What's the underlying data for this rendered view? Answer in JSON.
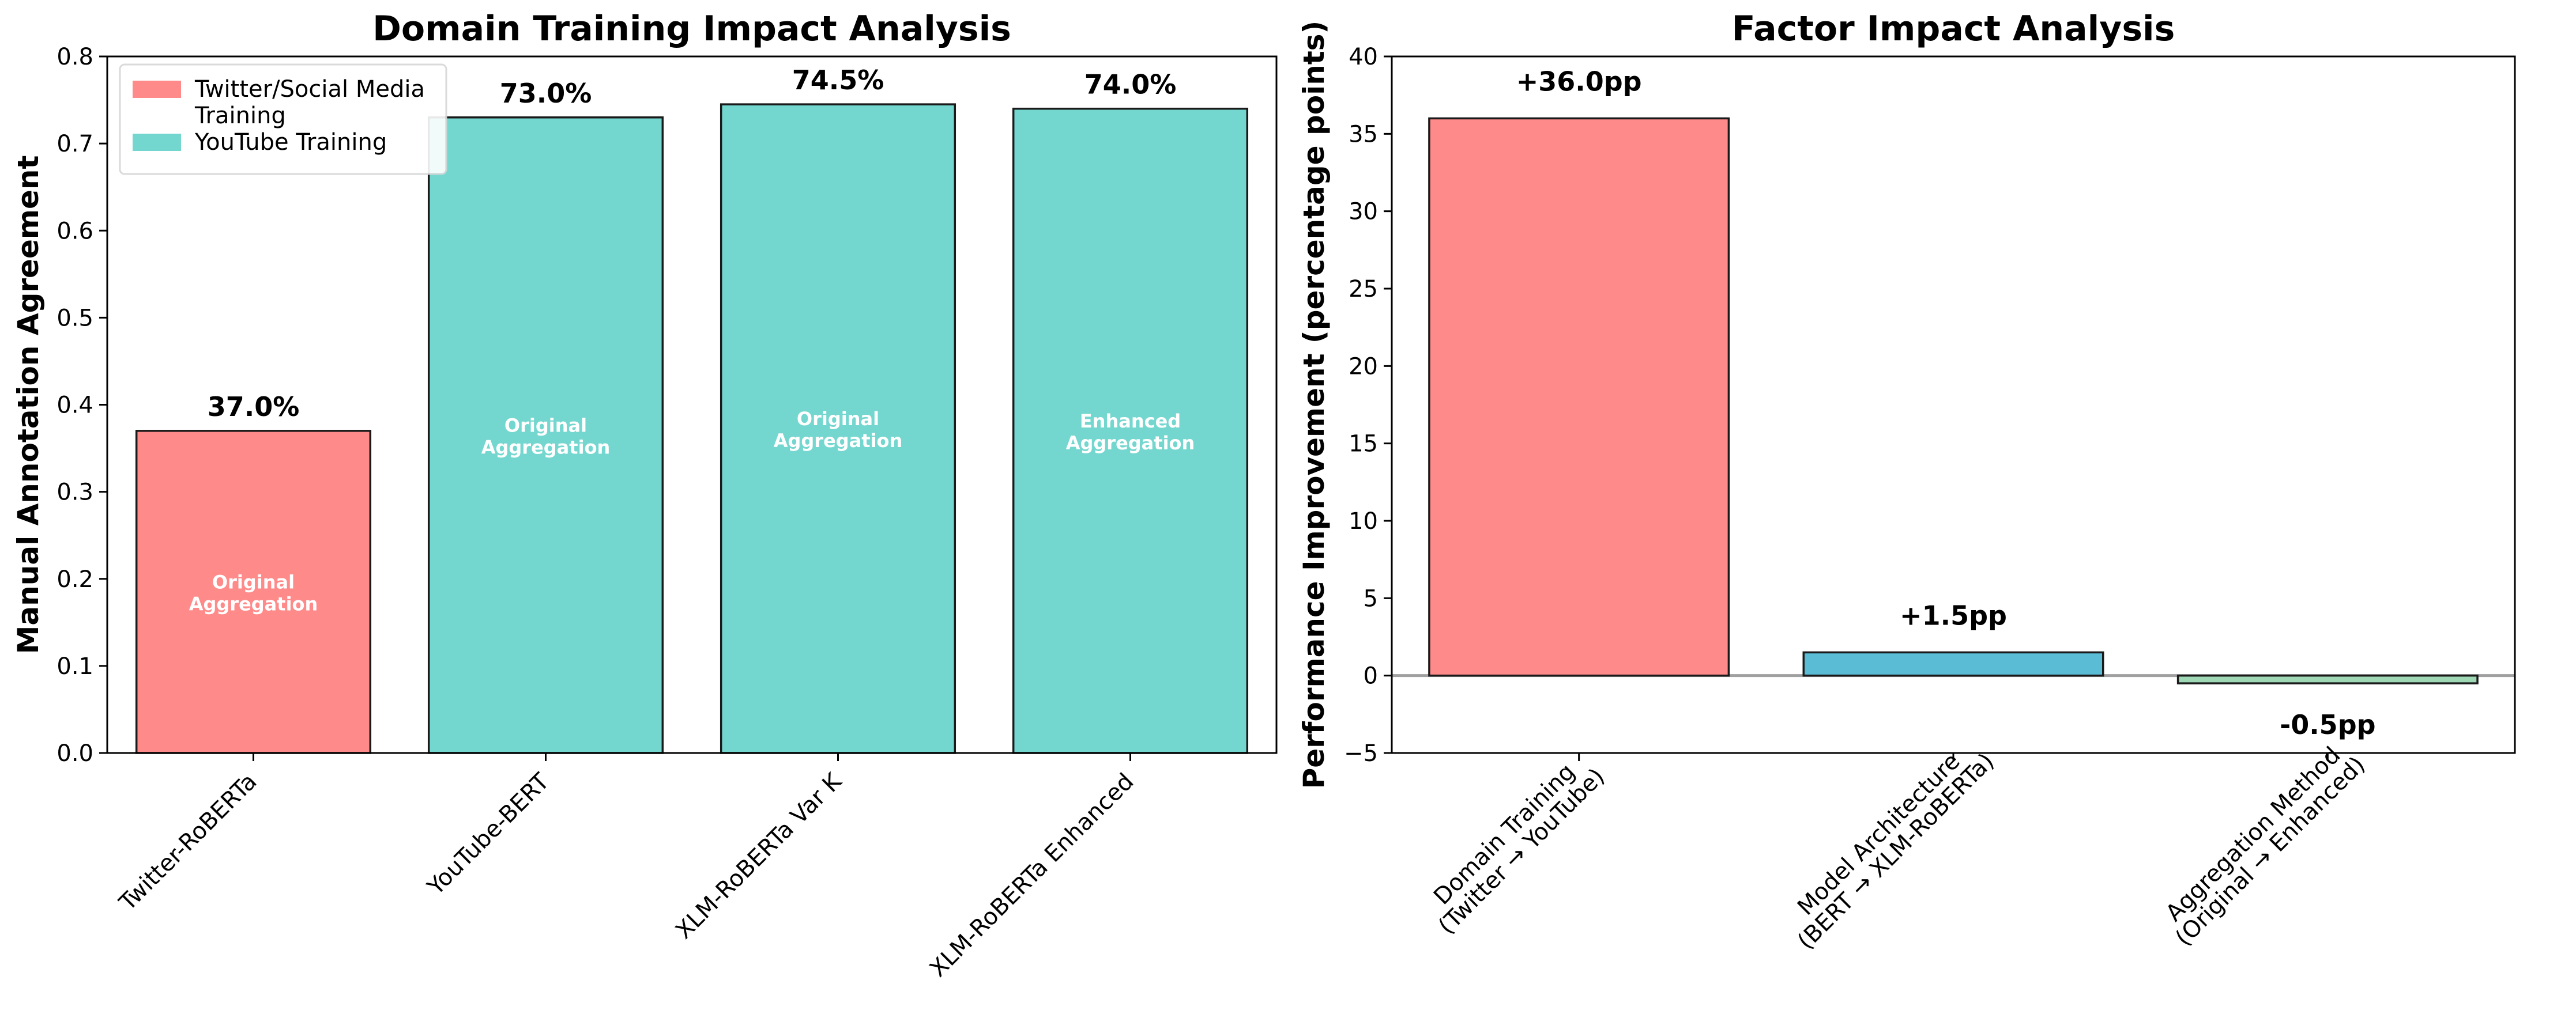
{
  "chart_data": [
    {
      "type": "bar",
      "title": "Domain Training Impact Analysis",
      "xlabel": "",
      "ylabel": "Manual Annotation Agreement",
      "ylim": [
        0,
        0.8
      ],
      "yticks": [
        "0.0",
        "0.1",
        "0.2",
        "0.3",
        "0.4",
        "0.5",
        "0.6",
        "0.7",
        "0.8"
      ],
      "categories": [
        "Twitter-RoBERTa",
        "YouTube-BERT",
        "XLM-RoBERTa Var K",
        "XLM-RoBERTa Enhanced"
      ],
      "values": [
        0.37,
        0.73,
        0.745,
        0.74
      ],
      "value_labels": [
        "37.0%",
        "73.0%",
        "74.5%",
        "74.0%"
      ],
      "inner_labels": [
        [
          "Original",
          "Aggregation"
        ],
        [
          "Original",
          "Aggregation"
        ],
        [
          "Original",
          "Aggregation"
        ],
        [
          "Enhanced",
          "Aggregation"
        ]
      ],
      "bar_series": [
        0,
        1,
        1,
        1
      ],
      "legend": {
        "position": "top-left",
        "entries": [
          {
            "lines": [
              "Twitter/Social Media",
              "Training"
            ],
            "color": "#ff8a8a"
          },
          {
            "lines": [
              "YouTube Training"
            ],
            "color": "#74d7cf"
          }
        ]
      },
      "colors": [
        "#ff8a8a",
        "#74d7cf"
      ],
      "grid": false
    },
    {
      "type": "bar",
      "title": "Factor Impact Analysis",
      "xlabel": "",
      "ylabel": "Performance Improvement (percentage points)",
      "ylim": [
        -5,
        40
      ],
      "yticks": [
        "−5",
        "0",
        "5",
        "10",
        "15",
        "20",
        "25",
        "30",
        "35",
        "40"
      ],
      "categories": [
        [
          "Domain Training",
          "(Twitter → YouTube)"
        ],
        [
          "Model Architecture",
          "(BERT → XLM-RoBERTa)"
        ],
        [
          "Aggregation Method",
          "(Original → Enhanced)"
        ]
      ],
      "values": [
        36.0,
        1.5,
        -0.5
      ],
      "value_labels": [
        "+36.0pp",
        "+1.5pp",
        "-0.5pp"
      ],
      "colors": [
        "#ff8a8a",
        "#5bbcd6",
        "#9fd8b4"
      ],
      "zero_line": true,
      "grid": false
    }
  ]
}
